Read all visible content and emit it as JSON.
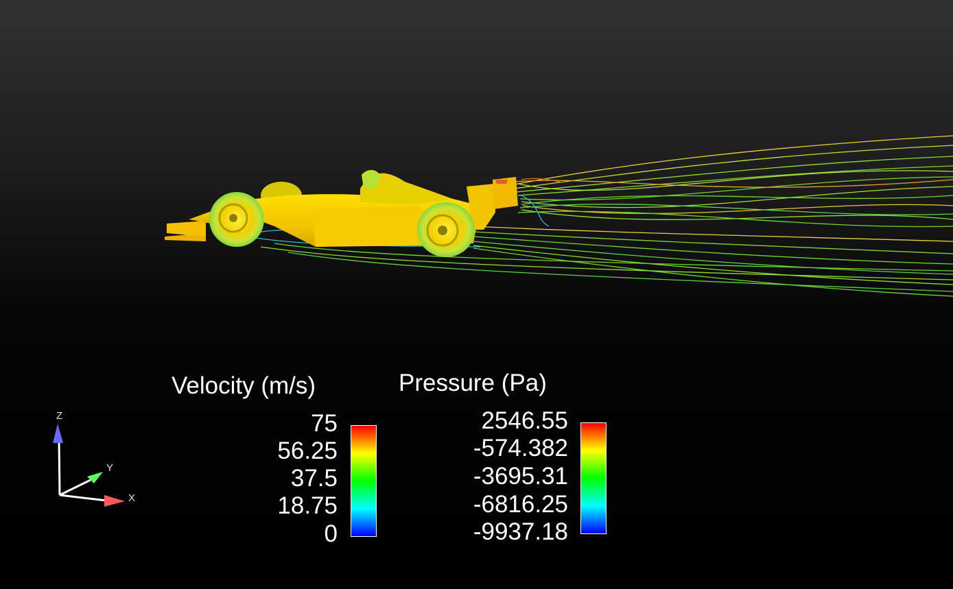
{
  "velocity_legend": {
    "title": "Velocity (m/s)",
    "ticks": [
      "75",
      "56.25",
      "37.5",
      "18.75",
      "0"
    ]
  },
  "pressure_legend": {
    "title": "Pressure (Pa)",
    "ticks": [
      "2546.55",
      "-574.382",
      "-3695.31",
      "-6816.25",
      "-9937.18"
    ]
  },
  "orientation_axes": {
    "z": "Z",
    "y": "Y",
    "x": "X"
  },
  "colors": {
    "car_body": "#f2c800",
    "streamline_green": "#6fd82a",
    "streamline_yellow": "#e8d23a",
    "axis_x": "#ff5a5a",
    "axis_y": "#5aff5a",
    "axis_z": "#6a6aff"
  }
}
